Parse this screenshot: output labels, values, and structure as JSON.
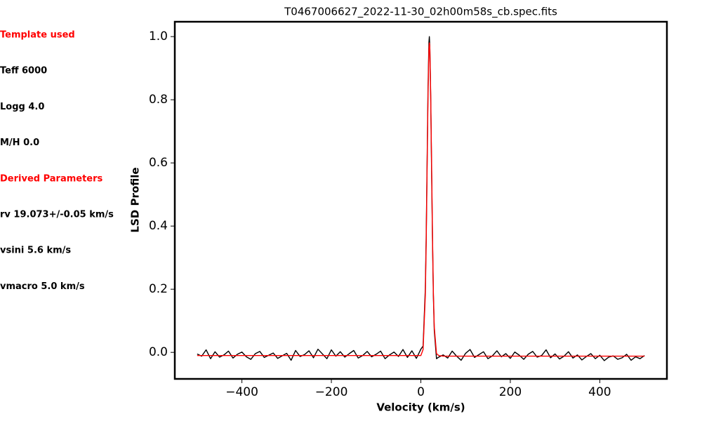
{
  "sidebar": {
    "items": [
      {
        "text": "Template used",
        "color": "#ff0000"
      },
      {
        "text": "Teff 6000",
        "color": "#000000"
      },
      {
        "text": "Logg 4.0",
        "color": "#000000"
      },
      {
        "text": "M/H 0.0",
        "color": "#000000"
      },
      {
        "text": "Derived Parameters",
        "color": "#ff0000"
      },
      {
        "text": "rv 19.073+/-0.05 km/s",
        "color": "#000000"
      },
      {
        "text": "vsini 5.6 km/s",
        "color": "#000000"
      },
      {
        "text": "vmacro 5.0 km/s",
        "color": "#000000"
      }
    ]
  },
  "chart_data": {
    "type": "line",
    "title": "T0467006627_2022-11-30_02h00m58s_cb.spec.fits",
    "xlabel": "Velocity (km/s)",
    "ylabel": "LSD Profile",
    "xlim": [
      -550,
      550
    ],
    "ylim": [
      -0.084,
      1.047
    ],
    "xticks": [
      {
        "value": -400,
        "label": "−400"
      },
      {
        "value": -200,
        "label": "−200"
      },
      0,
      200,
      400
    ],
    "yticks": [
      {
        "value": 0,
        "label": "0.0"
      },
      0.2,
      0.4,
      0.6,
      0.8,
      {
        "value": 1,
        "label": "1.0"
      }
    ],
    "x": [
      -500,
      -490,
      -480,
      -470,
      -460,
      -450,
      -440,
      -430,
      -420,
      -410,
      -400,
      -390,
      -380,
      -370,
      -360,
      -350,
      -340,
      -330,
      -320,
      -310,
      -300,
      -290,
      -280,
      -270,
      -260,
      -250,
      -240,
      -230,
      -220,
      -210,
      -200,
      -190,
      -180,
      -170,
      -160,
      -150,
      -140,
      -130,
      -120,
      -110,
      -100,
      -90,
      -80,
      -70,
      -60,
      -50,
      -40,
      -30,
      -20,
      -10,
      0,
      5,
      10,
      12,
      14,
      16,
      18,
      19,
      20,
      22,
      24,
      26,
      28,
      30,
      35,
      40,
      50,
      60,
      70,
      80,
      90,
      100,
      110,
      120,
      130,
      140,
      150,
      160,
      170,
      180,
      190,
      200,
      210,
      220,
      230,
      240,
      250,
      260,
      270,
      280,
      290,
      300,
      310,
      320,
      330,
      340,
      350,
      360,
      370,
      380,
      390,
      400,
      410,
      420,
      430,
      440,
      450,
      460,
      470,
      480,
      490,
      500
    ],
    "series": [
      {
        "color": "#000000",
        "values": [
          -0.005,
          -0.012,
          0.008,
          -0.02,
          0.002,
          -0.015,
          -0.008,
          0.004,
          -0.018,
          -0.006,
          0.001,
          -0.014,
          -0.022,
          -0.004,
          0.003,
          -0.016,
          -0.009,
          -0.002,
          -0.019,
          -0.011,
          -0.003,
          -0.025,
          0.006,
          -0.013,
          -0.007,
          0.005,
          -0.017,
          0.01,
          -0.005,
          -0.02,
          0.008,
          -0.012,
          0.002,
          -0.015,
          -0.004,
          0.006,
          -0.018,
          -0.01,
          0.003,
          -0.014,
          -0.006,
          0.004,
          -0.02,
          -0.008,
          0.001,
          -0.013,
          0.009,
          -0.016,
          0.005,
          -0.019,
          0.01,
          0.02,
          0.2,
          0.37,
          0.6,
          0.83,
          0.98,
          1.0,
          0.97,
          0.81,
          0.58,
          0.36,
          0.18,
          0.07,
          -0.02,
          -0.015,
          -0.008,
          -0.018,
          0.004,
          -0.012,
          -0.025,
          -0.003,
          0.009,
          -0.016,
          -0.007,
          0.002,
          -0.02,
          -0.011,
          0.005,
          -0.014,
          -0.004,
          -0.019,
          0.001,
          -0.009,
          -0.022,
          -0.006,
          0.003,
          -0.015,
          -0.01,
          0.008,
          -0.017,
          -0.005,
          -0.021,
          -0.012,
          0.002,
          -0.018,
          -0.008,
          -0.024,
          -0.013,
          -0.004,
          -0.02,
          -0.009,
          -0.026,
          -0.015,
          -0.011,
          -0.022,
          -0.017,
          -0.006,
          -0.025,
          -0.014,
          -0.02,
          -0.01
        ]
      },
      {
        "color": "#ff0000",
        "values": [
          -0.01,
          -0.01,
          -0.01,
          -0.01,
          -0.01,
          -0.01,
          -0.01,
          -0.01,
          -0.01,
          -0.01,
          -0.01,
          -0.01,
          -0.01,
          -0.01,
          -0.01,
          -0.01,
          -0.01,
          -0.01,
          -0.01,
          -0.01,
          -0.01,
          -0.01,
          -0.01,
          -0.01,
          -0.01,
          -0.01,
          -0.01,
          -0.01,
          -0.01,
          -0.01,
          -0.01,
          -0.01,
          -0.01,
          -0.01,
          -0.01,
          -0.01,
          -0.01,
          -0.01,
          -0.01,
          -0.01,
          -0.01,
          -0.01,
          -0.01,
          -0.01,
          -0.01,
          -0.01,
          -0.01,
          -0.01,
          -0.01,
          -0.01,
          -0.01,
          0.009,
          0.18,
          0.35,
          0.58,
          0.81,
          0.96,
          0.98,
          0.97,
          0.82,
          0.6,
          0.37,
          0.19,
          0.08,
          -0.004,
          -0.01,
          -0.012,
          -0.012,
          -0.012,
          -0.012,
          -0.012,
          -0.012,
          -0.012,
          -0.012,
          -0.012,
          -0.012,
          -0.012,
          -0.012,
          -0.012,
          -0.012,
          -0.012,
          -0.012,
          -0.012,
          -0.012,
          -0.012,
          -0.012,
          -0.012,
          -0.012,
          -0.012,
          -0.012,
          -0.012,
          -0.012,
          -0.012,
          -0.012,
          -0.012,
          -0.012,
          -0.012,
          -0.012,
          -0.012,
          -0.012,
          -0.012,
          -0.012,
          -0.012,
          -0.012,
          -0.012,
          -0.012,
          -0.012,
          -0.012,
          -0.012,
          -0.012,
          -0.012,
          -0.012
        ]
      }
    ]
  }
}
